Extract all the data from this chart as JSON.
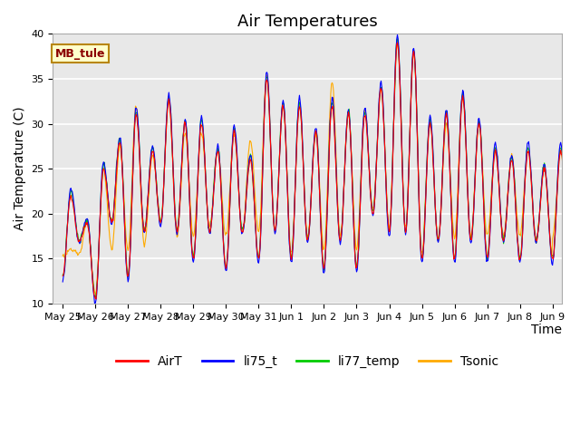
{
  "title": "Air Temperatures",
  "xlabel": "Time",
  "ylabel": "Air Temperature (C)",
  "ylim": [
    10,
    40
  ],
  "background_color": "#e8e8e8",
  "figure_background": "#ffffff",
  "annotation_text": "MB_tule",
  "annotation_color": "#8b0000",
  "annotation_bg": "#ffffcc",
  "annotation_border": "#b8860b",
  "legend_entries": [
    "AirT",
    "li75_t",
    "li77_temp",
    "Tsonic"
  ],
  "line_colors": [
    "#ff0000",
    "#0000ff",
    "#00cc00",
    "#ffaa00"
  ],
  "xtick_labels": [
    "May 25",
    "May 26",
    "May 27",
    "May 28",
    "May 29",
    "May 30",
    "May 31",
    "Jun 1",
    "Jun 2",
    "Jun 3",
    "Jun 4",
    "Jun 5",
    "Jun 6",
    "Jun 7",
    "Jun 8",
    "Jun 9"
  ],
  "grid_color": "#ffffff",
  "title_fontsize": 13,
  "axis_label_fontsize": 10,
  "tick_fontsize": 8,
  "legend_fontsize": 10,
  "daily_peaks": [
    22,
    25,
    31,
    32.5,
    30,
    29,
    35,
    32,
    32,
    31,
    39,
    30,
    33,
    27,
    27,
    27
  ],
  "daily_peaks2": [
    19,
    28,
    27,
    30,
    27,
    26,
    32,
    29,
    31,
    34,
    38,
    31,
    30,
    26,
    25,
    26
  ],
  "daily_troughs": [
    13,
    10.5,
    13,
    19,
    15,
    14,
    15,
    15,
    14,
    14,
    18,
    15,
    15,
    15,
    15,
    15
  ],
  "daily_troughs2": [
    17,
    19,
    18,
    18,
    18,
    18,
    18,
    17,
    17,
    20,
    18,
    17,
    17,
    17,
    17,
    17
  ],
  "tsonic_peaks": [
    16,
    25,
    32,
    32.5,
    29,
    29,
    35.5,
    32,
    34.5,
    31.5,
    39,
    30.5,
    33,
    27,
    27,
    27
  ],
  "tsonic_peaks2": [
    19,
    27.5,
    26.5,
    29,
    27,
    28,
    32,
    29,
    31,
    34,
    38,
    30,
    30,
    26.5,
    25,
    26
  ],
  "tsonic_troughs": [
    15,
    11,
    16,
    19,
    17.5,
    17.5,
    18,
    15.5,
    16,
    16,
    18.5,
    15.5,
    17.5,
    17.5,
    17.5,
    15
  ],
  "tsonic_troughs2": [
    15.5,
    16,
    16.5,
    17.5,
    18.5,
    18,
    18,
    17.5,
    17.5,
    20.5,
    18.5,
    17,
    17.5,
    17.5,
    17,
    17
  ]
}
